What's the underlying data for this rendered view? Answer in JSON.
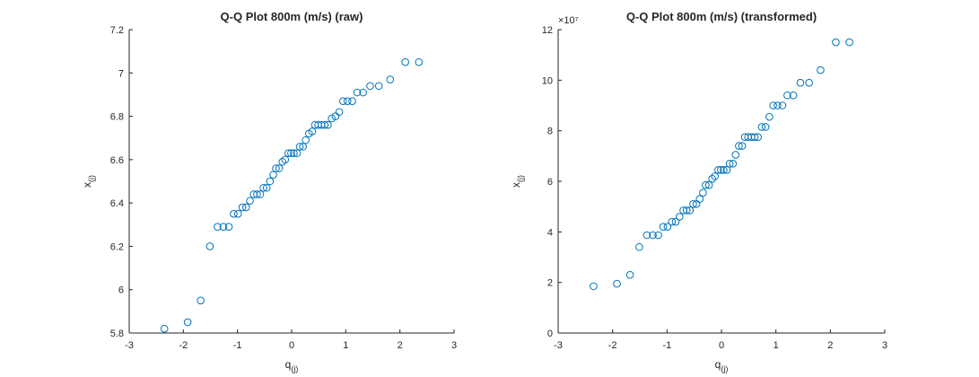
{
  "chart_data": [
    {
      "type": "scatter",
      "title": "Q-Q Plot 800m (m/s) (raw)",
      "xlabel": "q",
      "xlabel_sub": "(j)",
      "ylabel": "x",
      "ylabel_sub": "(j)",
      "xlim": [
        -3,
        3
      ],
      "ylim": [
        5.8,
        7.2
      ],
      "xticks": [
        "-3",
        "-2",
        "-1",
        "0",
        "1",
        "2",
        "3"
      ],
      "yticks": [
        "5.8",
        "6",
        "6.2",
        "6.4",
        "6.6",
        "6.8",
        "7",
        "7.2"
      ],
      "exponent_label": "",
      "grid": false,
      "marker_color": "#0072BD",
      "points": [
        [
          -2.35,
          5.82
        ],
        [
          -1.92,
          5.85
        ],
        [
          -1.68,
          5.95
        ],
        [
          -1.51,
          6.2
        ],
        [
          -1.37,
          6.29
        ],
        [
          -1.26,
          6.29
        ],
        [
          -1.16,
          6.29
        ],
        [
          -1.07,
          6.35
        ],
        [
          -0.99,
          6.35
        ],
        [
          -0.91,
          6.38
        ],
        [
          -0.84,
          6.38
        ],
        [
          -0.77,
          6.41
        ],
        [
          -0.7,
          6.44
        ],
        [
          -0.64,
          6.44
        ],
        [
          -0.58,
          6.44
        ],
        [
          -0.52,
          6.47
        ],
        [
          -0.46,
          6.47
        ],
        [
          -0.4,
          6.5
        ],
        [
          -0.34,
          6.53
        ],
        [
          -0.29,
          6.56
        ],
        [
          -0.23,
          6.56
        ],
        [
          -0.17,
          6.59
        ],
        [
          -0.12,
          6.6
        ],
        [
          -0.06,
          6.63
        ],
        [
          -0.01,
          6.63
        ],
        [
          0.04,
          6.63
        ],
        [
          0.1,
          6.63
        ],
        [
          0.15,
          6.66
        ],
        [
          0.21,
          6.66
        ],
        [
          0.26,
          6.69
        ],
        [
          0.32,
          6.72
        ],
        [
          0.38,
          6.73
        ],
        [
          0.43,
          6.76
        ],
        [
          0.49,
          6.76
        ],
        [
          0.55,
          6.76
        ],
        [
          0.61,
          6.76
        ],
        [
          0.67,
          6.76
        ],
        [
          0.74,
          6.79
        ],
        [
          0.81,
          6.8
        ],
        [
          0.88,
          6.82
        ],
        [
          0.95,
          6.87
        ],
        [
          1.03,
          6.87
        ],
        [
          1.12,
          6.87
        ],
        [
          1.21,
          6.91
        ],
        [
          1.32,
          6.91
        ],
        [
          1.45,
          6.94
        ],
        [
          1.61,
          6.94
        ],
        [
          1.82,
          6.97
        ],
        [
          2.1,
          7.05
        ],
        [
          2.35,
          7.05
        ]
      ]
    },
    {
      "type": "scatter",
      "title": "Q-Q Plot 800m (m/s) (transformed)",
      "xlabel": "q",
      "xlabel_sub": "(j)",
      "ylabel": "x",
      "ylabel_sub": "(j)",
      "xlim": [
        -3,
        3
      ],
      "ylim": [
        0,
        12
      ],
      "xticks": [
        "-3",
        "-2",
        "-1",
        "0",
        "1",
        "2",
        "3"
      ],
      "yticks": [
        "0",
        "2",
        "4",
        "6",
        "8",
        "10",
        "12"
      ],
      "exponent_label": "×10⁷",
      "grid": false,
      "marker_color": "#0072BD",
      "points": [
        [
          -2.35,
          1.85
        ],
        [
          -1.92,
          1.95
        ],
        [
          -1.68,
          2.3
        ],
        [
          -1.51,
          3.4
        ],
        [
          -1.37,
          3.87
        ],
        [
          -1.26,
          3.87
        ],
        [
          -1.16,
          3.87
        ],
        [
          -1.07,
          4.2
        ],
        [
          -0.99,
          4.2
        ],
        [
          -0.91,
          4.4
        ],
        [
          -0.84,
          4.4
        ],
        [
          -0.77,
          4.6
        ],
        [
          -0.7,
          4.85
        ],
        [
          -0.64,
          4.85
        ],
        [
          -0.58,
          4.85
        ],
        [
          -0.52,
          5.1
        ],
        [
          -0.46,
          5.1
        ],
        [
          -0.4,
          5.3
        ],
        [
          -0.34,
          5.55
        ],
        [
          -0.29,
          5.85
        ],
        [
          -0.23,
          5.85
        ],
        [
          -0.17,
          6.1
        ],
        [
          -0.12,
          6.2
        ],
        [
          -0.06,
          6.45
        ],
        [
          -0.01,
          6.45
        ],
        [
          0.04,
          6.45
        ],
        [
          0.1,
          6.45
        ],
        [
          0.15,
          6.7
        ],
        [
          0.21,
          6.7
        ],
        [
          0.26,
          7.05
        ],
        [
          0.32,
          7.4
        ],
        [
          0.38,
          7.4
        ],
        [
          0.43,
          7.75
        ],
        [
          0.49,
          7.75
        ],
        [
          0.55,
          7.75
        ],
        [
          0.61,
          7.75
        ],
        [
          0.67,
          7.75
        ],
        [
          0.74,
          8.15
        ],
        [
          0.81,
          8.15
        ],
        [
          0.88,
          8.55
        ],
        [
          0.95,
          9.0
        ],
        [
          1.03,
          9.0
        ],
        [
          1.12,
          9.0
        ],
        [
          1.21,
          9.4
        ],
        [
          1.32,
          9.4
        ],
        [
          1.45,
          9.9
        ],
        [
          1.61,
          9.9
        ],
        [
          1.82,
          10.4
        ],
        [
          2.1,
          11.5
        ],
        [
          2.35,
          11.5
        ]
      ]
    }
  ]
}
